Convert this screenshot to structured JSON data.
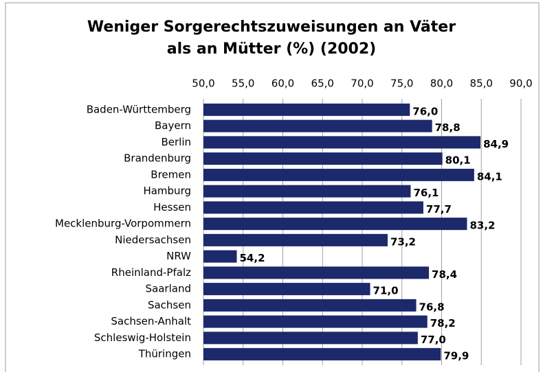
{
  "chart_data": {
    "type": "bar",
    "orientation": "horizontal",
    "title": [
      "Weniger Sorgerechtszuweisungen an Väter",
      "als an Mütter (%) (2002)"
    ],
    "categories": [
      "Baden-Württemberg",
      "Bayern",
      "Berlin",
      "Brandenburg",
      "Bremen",
      "Hamburg",
      "Hessen",
      "Mecklenburg-Vorpommern",
      "Niedersachsen",
      "NRW",
      "Rheinland-Pfalz",
      "Saarland",
      "Sachsen",
      "Sachsen-Anhalt",
      "Schleswig-Holstein",
      "Thüringen"
    ],
    "values": [
      76.0,
      78.8,
      84.9,
      80.1,
      84.1,
      76.1,
      77.7,
      83.2,
      73.2,
      54.2,
      78.4,
      71.0,
      76.8,
      78.2,
      77.0,
      79.9
    ],
    "value_labels": [
      "76,0",
      "78,8",
      "84,9",
      "80,1",
      "84,1",
      "76,1",
      "77,7",
      "83,2",
      "73,2",
      "54,2",
      "78,4",
      "71,0",
      "76,8",
      "78,2",
      "77,0",
      "79,9"
    ],
    "color": "#1c2a6b",
    "xlim": [
      50,
      90
    ],
    "xticks": [
      {
        "value": 50,
        "label": "50,0"
      },
      {
        "value": 55,
        "label": "55,0"
      },
      {
        "value": 60,
        "label": "60,0"
      },
      {
        "value": 65,
        "label": "65,0"
      },
      {
        "value": 70,
        "label": "70,0"
      },
      {
        "value": 75,
        "label": "75,0"
      },
      {
        "value": 80,
        "label": "80,0"
      },
      {
        "value": 85,
        "label": "85,0"
      },
      {
        "value": 90,
        "label": "90,0"
      }
    ],
    "grid": true
  }
}
